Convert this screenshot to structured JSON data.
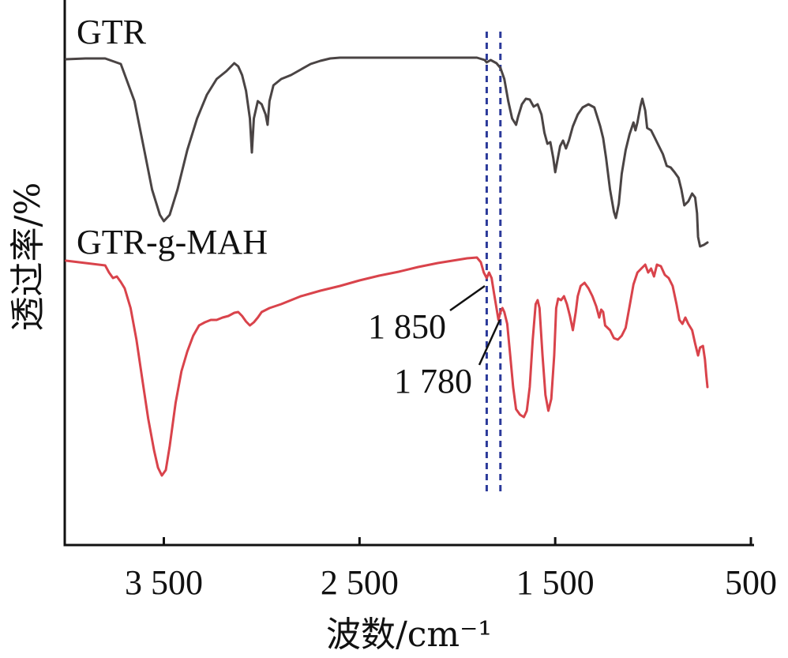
{
  "chart_data": {
    "type": "line",
    "xlabel": "波数/cm⁻¹",
    "ylabel": "透过率/%",
    "xlim": [
      4000,
      500
    ],
    "x_reversed": true,
    "xticks": [
      {
        "value": 3500,
        "label": "3 500"
      },
      {
        "value": 2500,
        "label": "2 500"
      },
      {
        "value": 1500,
        "label": "1 500"
      },
      {
        "value": 500,
        "label": "500"
      }
    ],
    "y_ticks_shown": false,
    "reference_lines": [
      {
        "x": 1850
      },
      {
        "x": 1780
      }
    ],
    "annotations": [
      {
        "label": "1 850",
        "x": 1850
      },
      {
        "label": "1 780",
        "x": 1780
      }
    ],
    "series": [
      {
        "name": "GTR",
        "color": "#4a4444",
        "points": [
          [
            4000,
            75
          ],
          [
            3900,
            74
          ],
          [
            3800,
            74
          ],
          [
            3720,
            81
          ],
          [
            3650,
            128
          ],
          [
            3600,
            190
          ],
          [
            3560,
            240
          ],
          [
            3520,
            272
          ],
          [
            3500,
            280
          ],
          [
            3470,
            272
          ],
          [
            3430,
            240
          ],
          [
            3380,
            190
          ],
          [
            3330,
            150
          ],
          [
            3280,
            120
          ],
          [
            3230,
            100
          ],
          [
            3180,
            90
          ],
          [
            3140,
            80
          ],
          [
            3120,
            84
          ],
          [
            3100,
            95
          ],
          [
            3080,
            115
          ],
          [
            3060,
            150
          ],
          [
            3050,
            193
          ],
          [
            3040,
            150
          ],
          [
            3020,
            128
          ],
          [
            3000,
            132
          ],
          [
            2980,
            145
          ],
          [
            2970,
            158
          ],
          [
            2960,
            128
          ],
          [
            2940,
            108
          ],
          [
            2900,
            100
          ],
          [
            2850,
            95
          ],
          [
            2800,
            88
          ],
          [
            2750,
            81
          ],
          [
            2700,
            77
          ],
          [
            2650,
            74
          ],
          [
            2600,
            73
          ],
          [
            2400,
            73
          ],
          [
            2200,
            73
          ],
          [
            2000,
            73
          ],
          [
            1900,
            73
          ],
          [
            1860,
            76
          ],
          [
            1850,
            79
          ],
          [
            1830,
            76
          ],
          [
            1800,
            80
          ],
          [
            1780,
            86
          ],
          [
            1760,
            100
          ],
          [
            1740,
            128
          ],
          [
            1720,
            150
          ],
          [
            1700,
            158
          ],
          [
            1690,
            148
          ],
          [
            1670,
            132
          ],
          [
            1650,
            125
          ],
          [
            1630,
            126
          ],
          [
            1610,
            135
          ],
          [
            1590,
            132
          ],
          [
            1570,
            145
          ],
          [
            1555,
            168
          ],
          [
            1540,
            182
          ],
          [
            1525,
            180
          ],
          [
            1510,
            200
          ],
          [
            1500,
            218
          ],
          [
            1490,
            205
          ],
          [
            1475,
            185
          ],
          [
            1460,
            178
          ],
          [
            1445,
            188
          ],
          [
            1430,
            178
          ],
          [
            1410,
            160
          ],
          [
            1385,
            145
          ],
          [
            1360,
            136
          ],
          [
            1330,
            132
          ],
          [
            1300,
            136
          ],
          [
            1285,
            148
          ],
          [
            1270,
            160
          ],
          [
            1255,
            175
          ],
          [
            1240,
            200
          ],
          [
            1220,
            240
          ],
          [
            1200,
            268
          ],
          [
            1190,
            276
          ],
          [
            1175,
            258
          ],
          [
            1160,
            220
          ],
          [
            1140,
            190
          ],
          [
            1120,
            170
          ],
          [
            1100,
            155
          ],
          [
            1090,
            165
          ],
          [
            1080,
            155
          ],
          [
            1065,
            135
          ],
          [
            1055,
            125
          ],
          [
            1040,
            140
          ],
          [
            1030,
            162
          ],
          [
            1010,
            165
          ],
          [
            990,
            175
          ],
          [
            970,
            185
          ],
          [
            950,
            195
          ],
          [
            930,
            210
          ],
          [
            910,
            212
          ],
          [
            890,
            218
          ],
          [
            870,
            225
          ],
          [
            855,
            240
          ],
          [
            840,
            260
          ],
          [
            820,
            255
          ],
          [
            800,
            245
          ],
          [
            785,
            250
          ],
          [
            775,
            270
          ],
          [
            770,
            300
          ],
          [
            760,
            312
          ],
          [
            740,
            310
          ],
          [
            722,
            307
          ]
        ]
      },
      {
        "name": "GTR-g-MAH",
        "color": "#d9434b",
        "points": [
          [
            4000,
            330
          ],
          [
            3900,
            333
          ],
          [
            3800,
            336
          ],
          [
            3780,
            345
          ],
          [
            3760,
            352
          ],
          [
            3740,
            350
          ],
          [
            3720,
            357
          ],
          [
            3700,
            365
          ],
          [
            3670,
            390
          ],
          [
            3640,
            430
          ],
          [
            3610,
            480
          ],
          [
            3580,
            530
          ],
          [
            3550,
            570
          ],
          [
            3530,
            592
          ],
          [
            3510,
            602
          ],
          [
            3490,
            595
          ],
          [
            3470,
            565
          ],
          [
            3440,
            510
          ],
          [
            3410,
            470
          ],
          [
            3380,
            445
          ],
          [
            3350,
            425
          ],
          [
            3320,
            412
          ],
          [
            3290,
            408
          ],
          [
            3260,
            405
          ],
          [
            3230,
            405
          ],
          [
            3200,
            402
          ],
          [
            3170,
            400
          ],
          [
            3140,
            396
          ],
          [
            3120,
            395
          ],
          [
            3100,
            400
          ],
          [
            3080,
            407
          ],
          [
            3060,
            412
          ],
          [
            3040,
            408
          ],
          [
            3020,
            402
          ],
          [
            3000,
            395
          ],
          [
            2960,
            390
          ],
          [
            2900,
            385
          ],
          [
            2800,
            375
          ],
          [
            2700,
            368
          ],
          [
            2600,
            362
          ],
          [
            2500,
            355
          ],
          [
            2400,
            349
          ],
          [
            2300,
            344
          ],
          [
            2200,
            338
          ],
          [
            2100,
            333
          ],
          [
            2000,
            329
          ],
          [
            1950,
            327
          ],
          [
            1900,
            326
          ],
          [
            1880,
            332
          ],
          [
            1865,
            345
          ],
          [
            1850,
            352
          ],
          [
            1838,
            345
          ],
          [
            1825,
            352
          ],
          [
            1812,
            372
          ],
          [
            1800,
            390
          ],
          [
            1790,
            405
          ],
          [
            1780,
            395
          ],
          [
            1770,
            390
          ],
          [
            1760,
            395
          ],
          [
            1745,
            410
          ],
          [
            1730,
            450
          ],
          [
            1715,
            490
          ],
          [
            1700,
            518
          ],
          [
            1680,
            525
          ],
          [
            1660,
            528
          ],
          [
            1645,
            520
          ],
          [
            1630,
            490
          ],
          [
            1615,
            430
          ],
          [
            1600,
            385
          ],
          [
            1590,
            380
          ],
          [
            1580,
            390
          ],
          [
            1565,
            450
          ],
          [
            1550,
            500
          ],
          [
            1535,
            520
          ],
          [
            1520,
            505
          ],
          [
            1505,
            450
          ],
          [
            1495,
            390
          ],
          [
            1485,
            378
          ],
          [
            1470,
            380
          ],
          [
            1455,
            375
          ],
          [
            1440,
            385
          ],
          [
            1425,
            400
          ],
          [
            1410,
            418
          ],
          [
            1395,
            395
          ],
          [
            1385,
            375
          ],
          [
            1370,
            362
          ],
          [
            1350,
            358
          ],
          [
            1330,
            365
          ],
          [
            1310,
            375
          ],
          [
            1290,
            388
          ],
          [
            1275,
            402
          ],
          [
            1265,
            392
          ],
          [
            1255,
            395
          ],
          [
            1245,
            412
          ],
          [
            1220,
            418
          ],
          [
            1200,
            428
          ],
          [
            1180,
            430
          ],
          [
            1160,
            425
          ],
          [
            1140,
            415
          ],
          [
            1120,
            388
          ],
          [
            1100,
            360
          ],
          [
            1080,
            345
          ],
          [
            1060,
            340
          ],
          [
            1040,
            335
          ],
          [
            1025,
            345
          ],
          [
            1010,
            340
          ],
          [
            995,
            350
          ],
          [
            980,
            335
          ],
          [
            960,
            337
          ],
          [
            940,
            348
          ],
          [
            920,
            352
          ],
          [
            900,
            362
          ],
          [
            880,
            385
          ],
          [
            865,
            405
          ],
          [
            850,
            410
          ],
          [
            835,
            402
          ],
          [
            820,
            410
          ],
          [
            800,
            418
          ],
          [
            785,
            435
          ],
          [
            770,
            450
          ],
          [
            760,
            440
          ],
          [
            745,
            438
          ],
          [
            735,
            455
          ],
          [
            728,
            475
          ],
          [
            722,
            490
          ]
        ]
      }
    ]
  }
}
